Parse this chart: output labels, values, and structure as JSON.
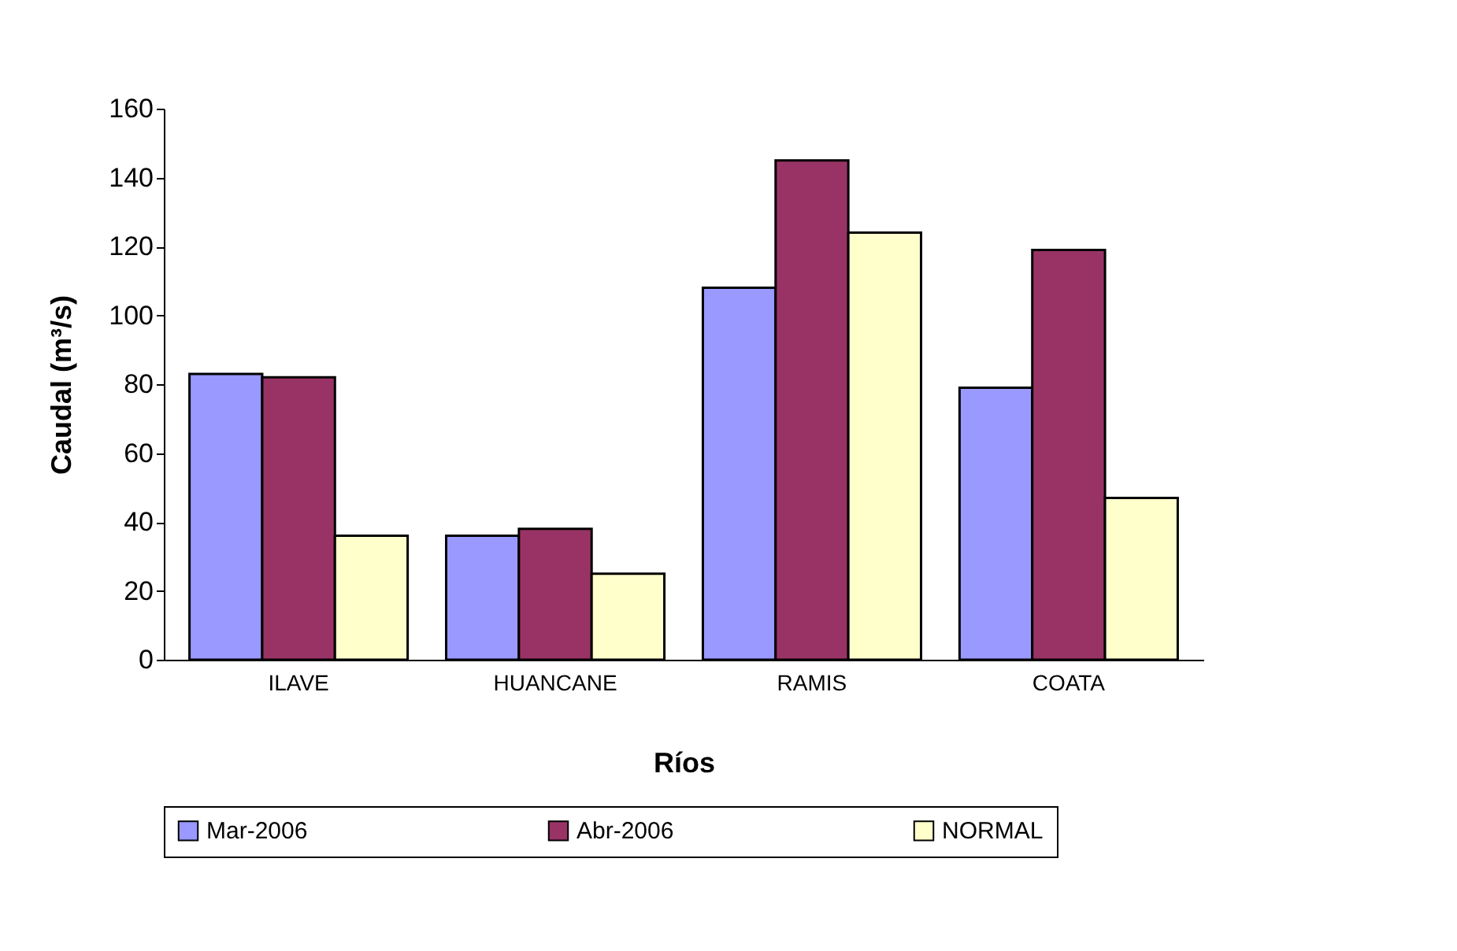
{
  "chart_data": {
    "type": "bar",
    "xlabel": "Ríos",
    "ylabel": "Caudal (m³/s)",
    "categories": [
      "ILAVE",
      "HUANCANE",
      "RAMIS",
      "COATA"
    ],
    "series": [
      {
        "name": "Mar-2006",
        "color": "#9999ff",
        "values": [
          83,
          36,
          108,
          79
        ]
      },
      {
        "name": "Abr-2006",
        "color": "#993366",
        "values": [
          82,
          38,
          145,
          119
        ]
      },
      {
        "name": "NORMAL",
        "color": "#ffffcc",
        "values": [
          36,
          25,
          124,
          47
        ]
      }
    ],
    "ylim": [
      0,
      160
    ],
    "yticks": [
      0,
      20,
      40,
      60,
      80,
      100,
      120,
      140,
      160
    ],
    "grid": false,
    "legend": "bottom"
  }
}
